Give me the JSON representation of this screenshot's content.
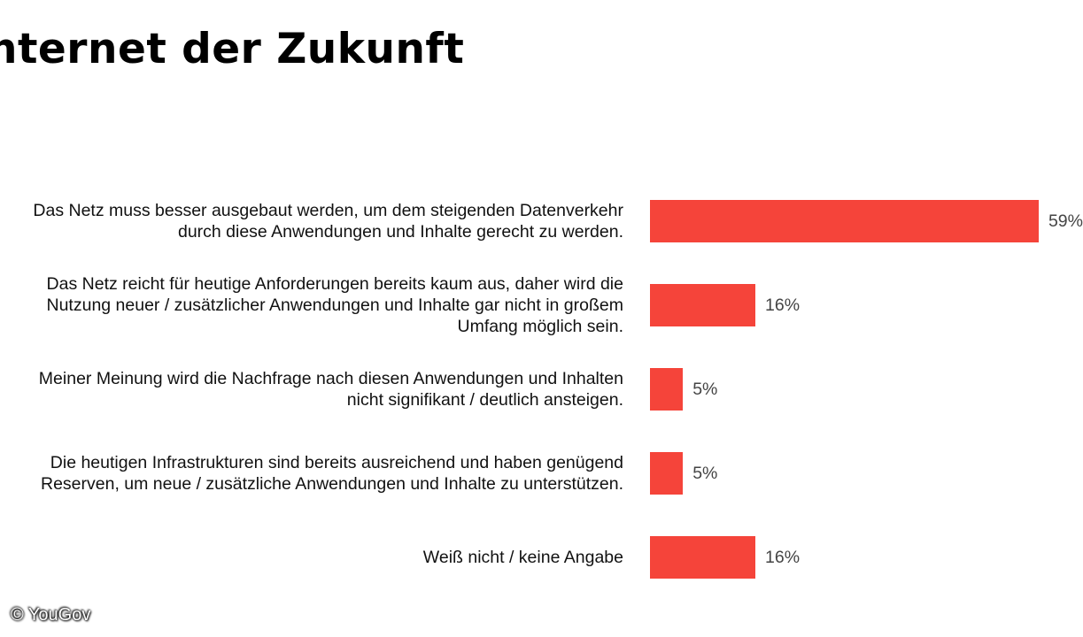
{
  "title": "nternet der Zukunft",
  "copyright": "© YouGov",
  "chart_data": {
    "type": "bar",
    "orientation": "horizontal",
    "title": "nternet der Zukunft",
    "categories": [
      [
        "Das Netz muss besser ausgebaut werden, um dem steigenden Datenverkehr",
        "durch diese Anwendungen und Inhalte gerecht zu werden."
      ],
      [
        "Das Netz reicht für heutige Anforderungen bereits kaum aus, daher wird die",
        "Nutzung neuer / zusätzlicher Anwendungen und Inhalte gar nicht in großem",
        "Umfang möglich sein."
      ],
      [
        "Meiner Meinung wird die Nachfrage nach diesen Anwendungen und Inhalten",
        "nicht signifikant / deutlich ansteigen."
      ],
      [
        "Die heutigen Infrastrukturen sind bereits ausreichend und haben genügend",
        "Reserven, um neue / zusätzliche Anwendungen und Inhalte zu unterstützen."
      ],
      [
        "Weiß nicht / keine Angabe"
      ]
    ],
    "values": [
      59,
      16,
      5,
      5,
      16
    ],
    "value_labels": [
      "59%",
      "16%",
      "5%",
      "5%",
      "16%"
    ],
    "xlim": [
      0,
      100
    ],
    "bar_color": "#f5443a",
    "grid": false,
    "legend": "none"
  }
}
